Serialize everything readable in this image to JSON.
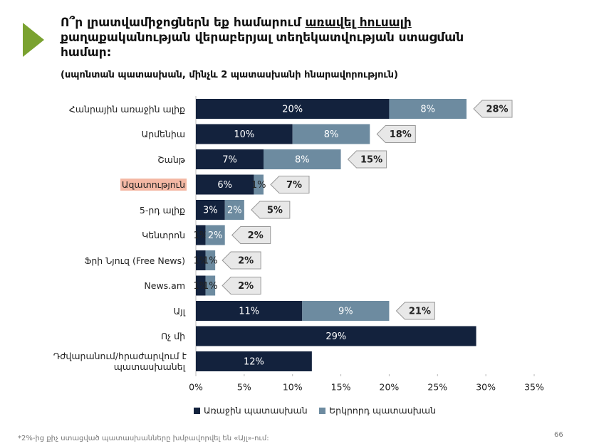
{
  "header": {
    "title_lines": [
      "Ո՞ր լրատվամիջոցներն եք համարում ",
      "քաղաքականության վերաբերյալ տեղեկատվության ստացման",
      "համար:"
    ],
    "title_underlined": "առավել հուսալի",
    "subtitle": "(սպոնտան պատասխան, մինչև 2 պատասխանի հնարավորություն)"
  },
  "chart_data": {
    "type": "stacked-barh",
    "categories": [
      "Հանրային առաջին ալիք",
      "Արմենիա",
      "Շանթ",
      "Ազատություն",
      "5-րդ ալիք",
      "Կենտրոն",
      "Ֆրի Նյուզ (Free News)",
      "News.am",
      "Այլ",
      "Ոչ մի",
      "Դժվարանում/հրաժարվում է պատասխանել"
    ],
    "highlight_index": 3,
    "series": [
      {
        "name": "Առաջին պատասխան",
        "color": "#13223d",
        "values": [
          20,
          10,
          7,
          6,
          3,
          1,
          1,
          1,
          11,
          29,
          12
        ],
        "value_labels": [
          "20%",
          "10%",
          "7%",
          "6%",
          "3%",
          "1%",
          "1%",
          "1%",
          "11%",
          "29%",
          "12%"
        ]
      },
      {
        "name": "Երկրորդ պատասխան",
        "color": "#6d8ba0",
        "values": [
          8,
          8,
          8,
          1,
          2,
          2,
          1,
          1,
          9,
          null,
          null
        ],
        "value_labels": [
          "8%",
          "8%",
          "8%",
          "1%",
          "2%",
          "2%",
          "1%",
          "1%",
          "9%",
          null,
          null
        ]
      }
    ],
    "totals": {
      "values": [
        28,
        18,
        15,
        7,
        5,
        2,
        2,
        2,
        21,
        null,
        null
      ],
      "value_labels": [
        "28%",
        "18%",
        "15%",
        "7%",
        "5%",
        "2%",
        "2%",
        "2%",
        "21%",
        null,
        null
      ]
    },
    "xlim": [
      0,
      35
    ],
    "xticks": [
      {
        "value": 0,
        "label": "0%"
      },
      {
        "value": 5,
        "label": "5%"
      },
      {
        "value": 10,
        "label": "10%"
      },
      {
        "value": 15,
        "label": "15%"
      },
      {
        "value": 20,
        "label": "20%"
      },
      {
        "value": 25,
        "label": "25%"
      },
      {
        "value": 30,
        "label": "30%"
      },
      {
        "value": 35,
        "label": "35%"
      }
    ],
    "legend": "bottom"
  },
  "footer": {
    "note": "*2%-ից քիչ ստացված պատասխանները խմբավորվել են «Այլ»-ում:",
    "page_number": "66"
  }
}
